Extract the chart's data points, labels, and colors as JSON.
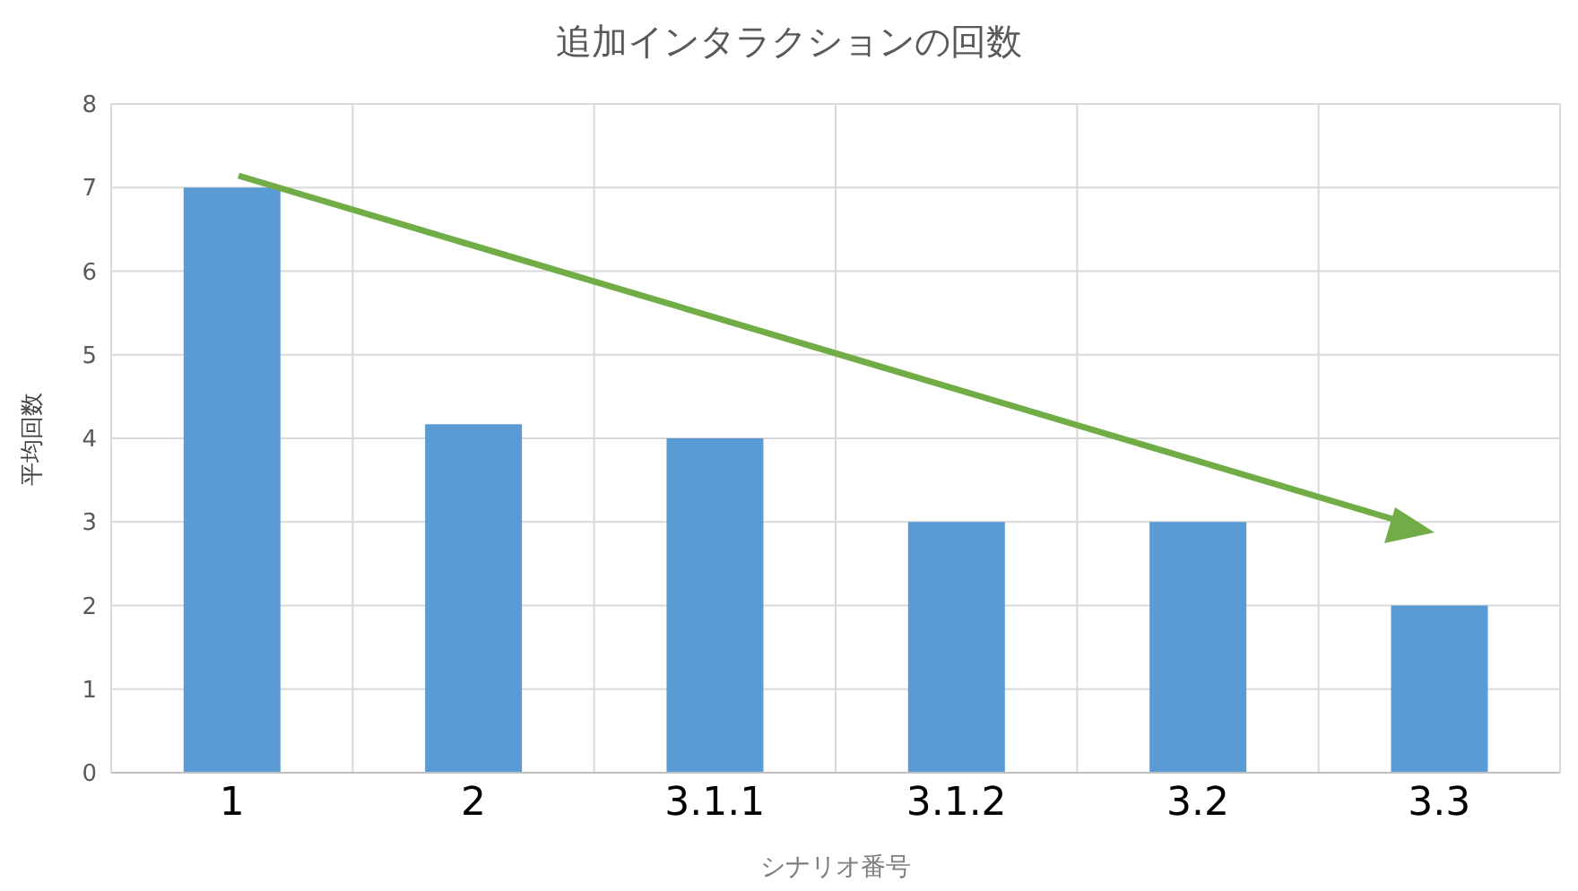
{
  "chart_data": {
    "type": "bar",
    "title": "追加インタラクションの回数",
    "xlabel": "シナリオ番号",
    "ylabel": "平均回数",
    "categories": [
      "1",
      "2",
      "3.1.1",
      "3.1.2",
      "3.2",
      "3.3"
    ],
    "values": [
      7,
      4.17,
      4,
      3,
      3,
      2
    ],
    "color": "#5b9bd5",
    "ylim": [
      0,
      8
    ],
    "yticks": [
      0,
      1,
      2,
      3,
      4,
      5,
      6,
      7,
      8
    ],
    "grid": true
  }
}
